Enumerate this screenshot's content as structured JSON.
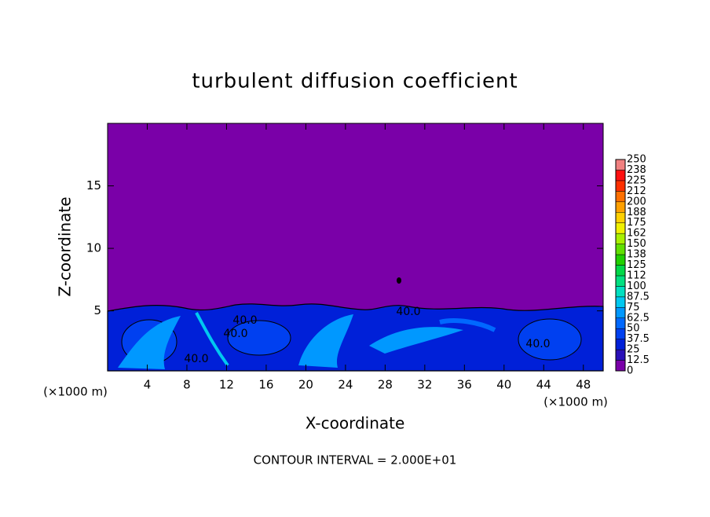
{
  "chart_data": {
    "type": "contour",
    "title": "turbulent diffusion coefficient",
    "x_label": "X-coordinate",
    "y_label": "Z-coordinate",
    "x_unit_label": "(×1000 m)",
    "footer": "CONTOUR INTERVAL = 2.000E+01",
    "xlim": [
      0,
      50
    ],
    "ylim": [
      0.2,
      20
    ],
    "xticks": [
      4,
      8,
      12,
      16,
      20,
      24,
      28,
      32,
      36,
      40,
      44,
      48
    ],
    "yticks": [
      5,
      10,
      15
    ],
    "colorbar": {
      "levels": [
        0,
        12.5,
        25,
        37.5,
        50,
        62.5,
        75,
        87.5,
        100,
        112,
        125,
        138,
        150,
        162,
        175,
        188,
        200,
        212,
        225,
        238,
        250
      ],
      "colors": [
        "#7a00a8",
        "#2a10b8",
        "#0020d8",
        "#0040f0",
        "#0068ff",
        "#0098ff",
        "#00c8f0",
        "#00e0c0",
        "#00e080",
        "#00d848",
        "#20d000",
        "#60e000",
        "#a8f000",
        "#f0f000",
        "#ffd000",
        "#ffa000",
        "#ff7000",
        "#ff3000",
        "#ff1010",
        "#f08080"
      ]
    },
    "annotations": [
      "40.0",
      "40.0",
      "40.0",
      "40.0",
      "40.0"
    ]
  }
}
